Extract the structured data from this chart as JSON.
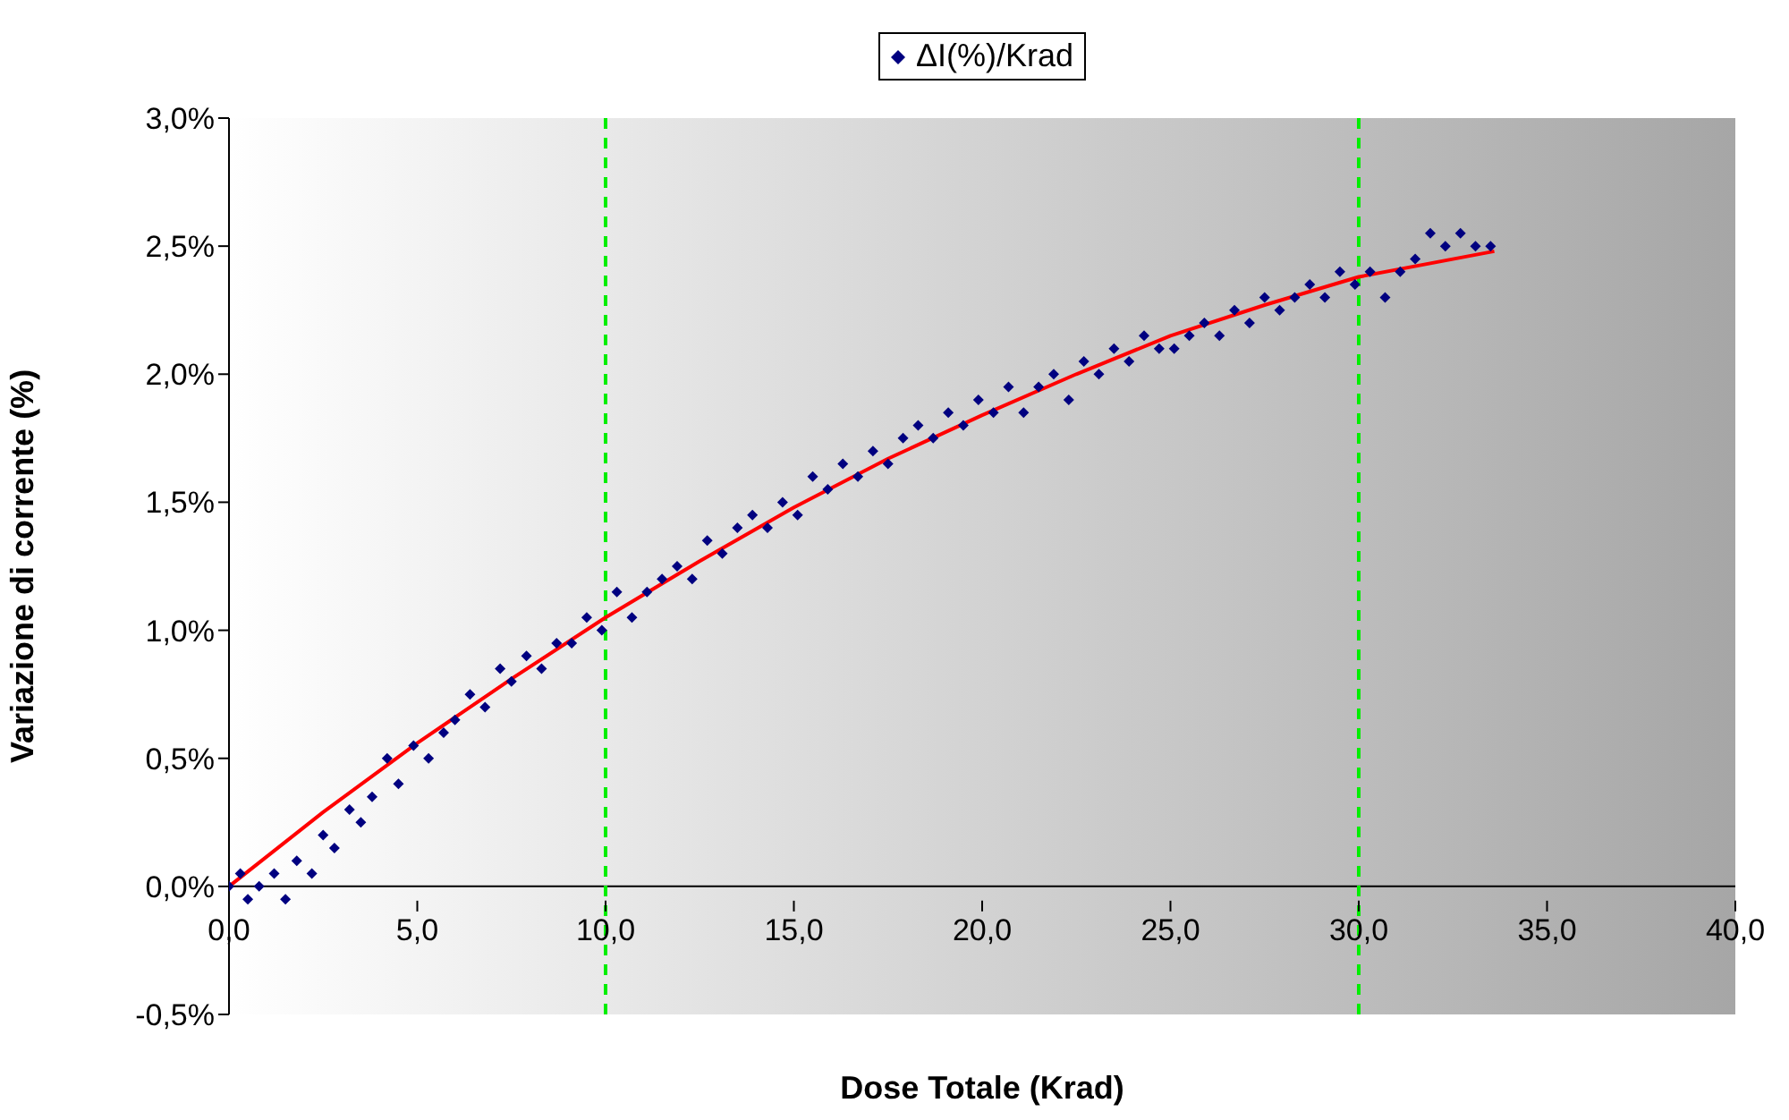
{
  "chart_data": {
    "type": "scatter",
    "xlabel": "Dose Totale (Krad)",
    "ylabel": "Variazione di corrente (%)",
    "legend": "top",
    "marker": "diamond",
    "grid": false,
    "xlim": [
      0,
      40
    ],
    "xticks": [
      {
        "value": 0,
        "label": "0,0"
      },
      {
        "value": 5,
        "label": "5,0"
      },
      {
        "value": 10,
        "label": "10,0"
      },
      {
        "value": 15,
        "label": "15,0"
      },
      {
        "value": 20,
        "label": "20,0"
      },
      {
        "value": 25,
        "label": "25,0"
      },
      {
        "value": 30,
        "label": "30,0"
      },
      {
        "value": 35,
        "label": "35,0"
      },
      {
        "value": 40,
        "label": "40,0"
      }
    ],
    "ylim": [
      -0.5,
      3
    ],
    "yticks": [
      {
        "value": -0.5,
        "label": "-0,5%"
      },
      {
        "value": 0,
        "label": "0,0%"
      },
      {
        "value": 0.5,
        "label": "0,5%"
      },
      {
        "value": 1,
        "label": "1,0%"
      },
      {
        "value": 1.5,
        "label": "1,5%"
      },
      {
        "value": 2,
        "label": "2,0%"
      },
      {
        "value": 2.5,
        "label": "2,5%"
      },
      {
        "value": 3,
        "label": "3,0%"
      }
    ],
    "ref_lines": [
      {
        "axis": "x",
        "value": 10,
        "color": "#00ee00",
        "line_style": "dashed"
      },
      {
        "axis": "x",
        "value": 30,
        "color": "#00ee00",
        "line_style": "dashed"
      }
    ],
    "series": [
      {
        "name": "ΔI(%)/Krad",
        "color": "#000080",
        "x": [
          0.0,
          0.3,
          0.5,
          0.8,
          1.2,
          1.5,
          1.8,
          2.2,
          2.5,
          2.8,
          3.2,
          3.5,
          3.8,
          4.2,
          4.5,
          4.9,
          5.3,
          5.7,
          6.0,
          6.4,
          6.8,
          7.2,
          7.5,
          7.9,
          8.3,
          8.7,
          9.1,
          9.5,
          9.9,
          10.3,
          10.7,
          11.1,
          11.5,
          11.9,
          12.3,
          12.7,
          13.1,
          13.5,
          13.9,
          14.3,
          14.7,
          15.1,
          15.5,
          15.9,
          16.3,
          16.7,
          17.1,
          17.5,
          17.9,
          18.3,
          18.7,
          19.1,
          19.5,
          19.9,
          20.3,
          20.7,
          21.1,
          21.5,
          21.9,
          22.3,
          22.7,
          23.1,
          23.5,
          23.9,
          24.3,
          24.7,
          25.1,
          25.5,
          25.9,
          26.3,
          26.7,
          27.1,
          27.5,
          27.9,
          28.3,
          28.7,
          29.1,
          29.5,
          29.9,
          30.3,
          30.7,
          31.1,
          31.5,
          31.9,
          32.3,
          32.7,
          33.1,
          33.5
        ],
        "values": [
          0.0,
          0.05,
          -0.05,
          0.0,
          0.05,
          -0.05,
          0.1,
          0.05,
          0.2,
          0.15,
          0.3,
          0.25,
          0.35,
          0.5,
          0.4,
          0.55,
          0.5,
          0.6,
          0.65,
          0.75,
          0.7,
          0.85,
          0.8,
          0.9,
          0.85,
          0.95,
          0.95,
          1.05,
          1.0,
          1.15,
          1.05,
          1.15,
          1.2,
          1.25,
          1.2,
          1.35,
          1.3,
          1.4,
          1.45,
          1.4,
          1.5,
          1.45,
          1.6,
          1.55,
          1.65,
          1.6,
          1.7,
          1.65,
          1.75,
          1.8,
          1.75,
          1.85,
          1.8,
          1.9,
          1.85,
          1.95,
          1.85,
          1.95,
          2.0,
          1.9,
          2.05,
          2.0,
          2.1,
          2.05,
          2.15,
          2.1,
          2.1,
          2.15,
          2.2,
          2.15,
          2.25,
          2.2,
          2.3,
          2.25,
          2.3,
          2.35,
          2.3,
          2.4,
          2.35,
          2.4,
          2.3,
          2.4,
          2.45,
          2.55,
          2.5,
          2.55,
          2.5,
          2.5
        ]
      },
      {
        "type": "line",
        "marker": "none",
        "color": "#ff0000",
        "x": [
          0,
          2.5,
          5,
          7.5,
          10,
          12.5,
          15,
          17.5,
          20,
          22.5,
          25,
          27.5,
          30,
          33.6
        ],
        "values": [
          0,
          0.29,
          0.56,
          0.81,
          1.05,
          1.27,
          1.48,
          1.67,
          1.84,
          2.0,
          2.15,
          2.27,
          2.38,
          2.48
        ]
      }
    ]
  }
}
